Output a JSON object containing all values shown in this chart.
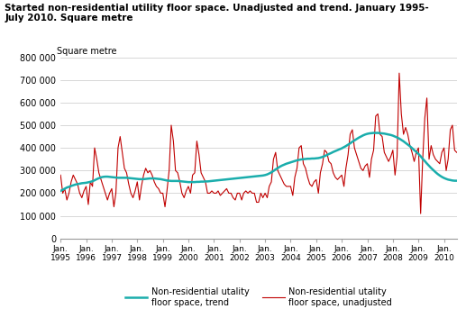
{
  "title_line1": "Started non-residential utility floor space. Unadjusted and trend. January 1995-",
  "title_line2": "July 2010. Square metre",
  "ylabel": "Square metre",
  "ylim": [
    0,
    800000
  ],
  "yticks": [
    0,
    100000,
    200000,
    300000,
    400000,
    500000,
    600000,
    700000,
    800000
  ],
  "ytick_labels": [
    "0",
    "100 000",
    "200 000",
    "300 000",
    "400 000",
    "500 000",
    "600 000",
    "700 000",
    "800 000"
  ],
  "xtick_years": [
    1995,
    1996,
    1997,
    1998,
    1999,
    2000,
    2001,
    2002,
    2003,
    2004,
    2005,
    2006,
    2007,
    2008,
    2009,
    2010
  ],
  "trend_color": "#1AADAC",
  "unadj_color": "#C00000",
  "legend_trend": "Non-residential utality\nfloor space, trend",
  "legend_unadj": "Non-residential utality\nfloor space, unadjusted",
  "background_color": "#ffffff",
  "grid_color": "#c8c8c8",
  "unadjusted": [
    280000,
    200000,
    220000,
    170000,
    200000,
    250000,
    280000,
    260000,
    240000,
    200000,
    180000,
    210000,
    230000,
    150000,
    250000,
    230000,
    400000,
    350000,
    290000,
    260000,
    230000,
    200000,
    170000,
    200000,
    220000,
    140000,
    200000,
    400000,
    450000,
    380000,
    310000,
    290000,
    240000,
    200000,
    180000,
    210000,
    250000,
    170000,
    230000,
    280000,
    310000,
    290000,
    300000,
    280000,
    250000,
    230000,
    220000,
    200000,
    200000,
    140000,
    210000,
    300000,
    500000,
    430000,
    300000,
    290000,
    250000,
    200000,
    180000,
    210000,
    230000,
    200000,
    280000,
    290000,
    430000,
    370000,
    290000,
    270000,
    250000,
    200000,
    200000,
    210000,
    200000,
    200000,
    210000,
    190000,
    200000,
    210000,
    220000,
    200000,
    200000,
    180000,
    170000,
    200000,
    200000,
    170000,
    200000,
    210000,
    200000,
    210000,
    200000,
    200000,
    160000,
    160000,
    200000,
    180000,
    200000,
    180000,
    230000,
    250000,
    350000,
    380000,
    300000,
    280000,
    260000,
    240000,
    230000,
    230000,
    230000,
    190000,
    270000,
    310000,
    400000,
    410000,
    330000,
    310000,
    270000,
    240000,
    230000,
    250000,
    260000,
    200000,
    290000,
    330000,
    390000,
    380000,
    340000,
    330000,
    290000,
    270000,
    260000,
    270000,
    280000,
    230000,
    310000,
    370000,
    460000,
    480000,
    400000,
    370000,
    340000,
    310000,
    300000,
    320000,
    330000,
    270000,
    350000,
    390000,
    540000,
    550000,
    460000,
    450000,
    380000,
    360000,
    340000,
    360000,
    390000,
    280000,
    360000,
    730000,
    550000,
    460000,
    490000,
    460000,
    410000,
    380000,
    340000,
    380000,
    400000,
    110000,
    340000,
    530000,
    620000,
    350000,
    410000,
    370000,
    350000,
    340000,
    330000,
    380000,
    400000,
    300000,
    350000,
    480000,
    500000,
    390000,
    380000
  ],
  "trend": [
    210000,
    215000,
    220000,
    225000,
    228000,
    232000,
    235000,
    238000,
    240000,
    242000,
    244000,
    245000,
    246000,
    248000,
    250000,
    253000,
    257000,
    262000,
    266000,
    270000,
    272000,
    273000,
    273000,
    272000,
    271000,
    270000,
    269000,
    268000,
    268000,
    268000,
    268000,
    268000,
    267000,
    266000,
    265000,
    264000,
    263000,
    262000,
    262000,
    262000,
    263000,
    264000,
    265000,
    265000,
    265000,
    264000,
    263000,
    262000,
    260000,
    258000,
    256000,
    255000,
    254000,
    254000,
    254000,
    254000,
    253000,
    252000,
    251000,
    250000,
    249000,
    249000,
    249000,
    249000,
    250000,
    250000,
    251000,
    251000,
    252000,
    252000,
    253000,
    254000,
    255000,
    256000,
    257000,
    258000,
    259000,
    260000,
    261000,
    262000,
    263000,
    264000,
    265000,
    266000,
    267000,
    268000,
    269000,
    270000,
    271000,
    272000,
    273000,
    274000,
    275000,
    276000,
    277000,
    278000,
    280000,
    283000,
    287000,
    292000,
    298000,
    305000,
    311000,
    317000,
    322000,
    326000,
    330000,
    333000,
    336000,
    339000,
    342000,
    345000,
    347000,
    349000,
    350000,
    351000,
    352000,
    352000,
    353000,
    353000,
    354000,
    355000,
    357000,
    360000,
    364000,
    368000,
    373000,
    377000,
    382000,
    386000,
    390000,
    394000,
    398000,
    403000,
    408000,
    414000,
    420000,
    427000,
    433000,
    439000,
    445000,
    450000,
    455000,
    459000,
    462000,
    464000,
    465000,
    466000,
    466000,
    466000,
    465000,
    464000,
    463000,
    461000,
    459000,
    457000,
    454000,
    450000,
    446000,
    441000,
    435000,
    429000,
    422000,
    415000,
    407000,
    399000,
    390000,
    382000,
    373000,
    363000,
    352000,
    342000,
    331000,
    321000,
    311000,
    302000,
    293000,
    285000,
    278000,
    272000,
    267000,
    263000,
    260000,
    258000,
    256000,
    255000,
    255000
  ]
}
